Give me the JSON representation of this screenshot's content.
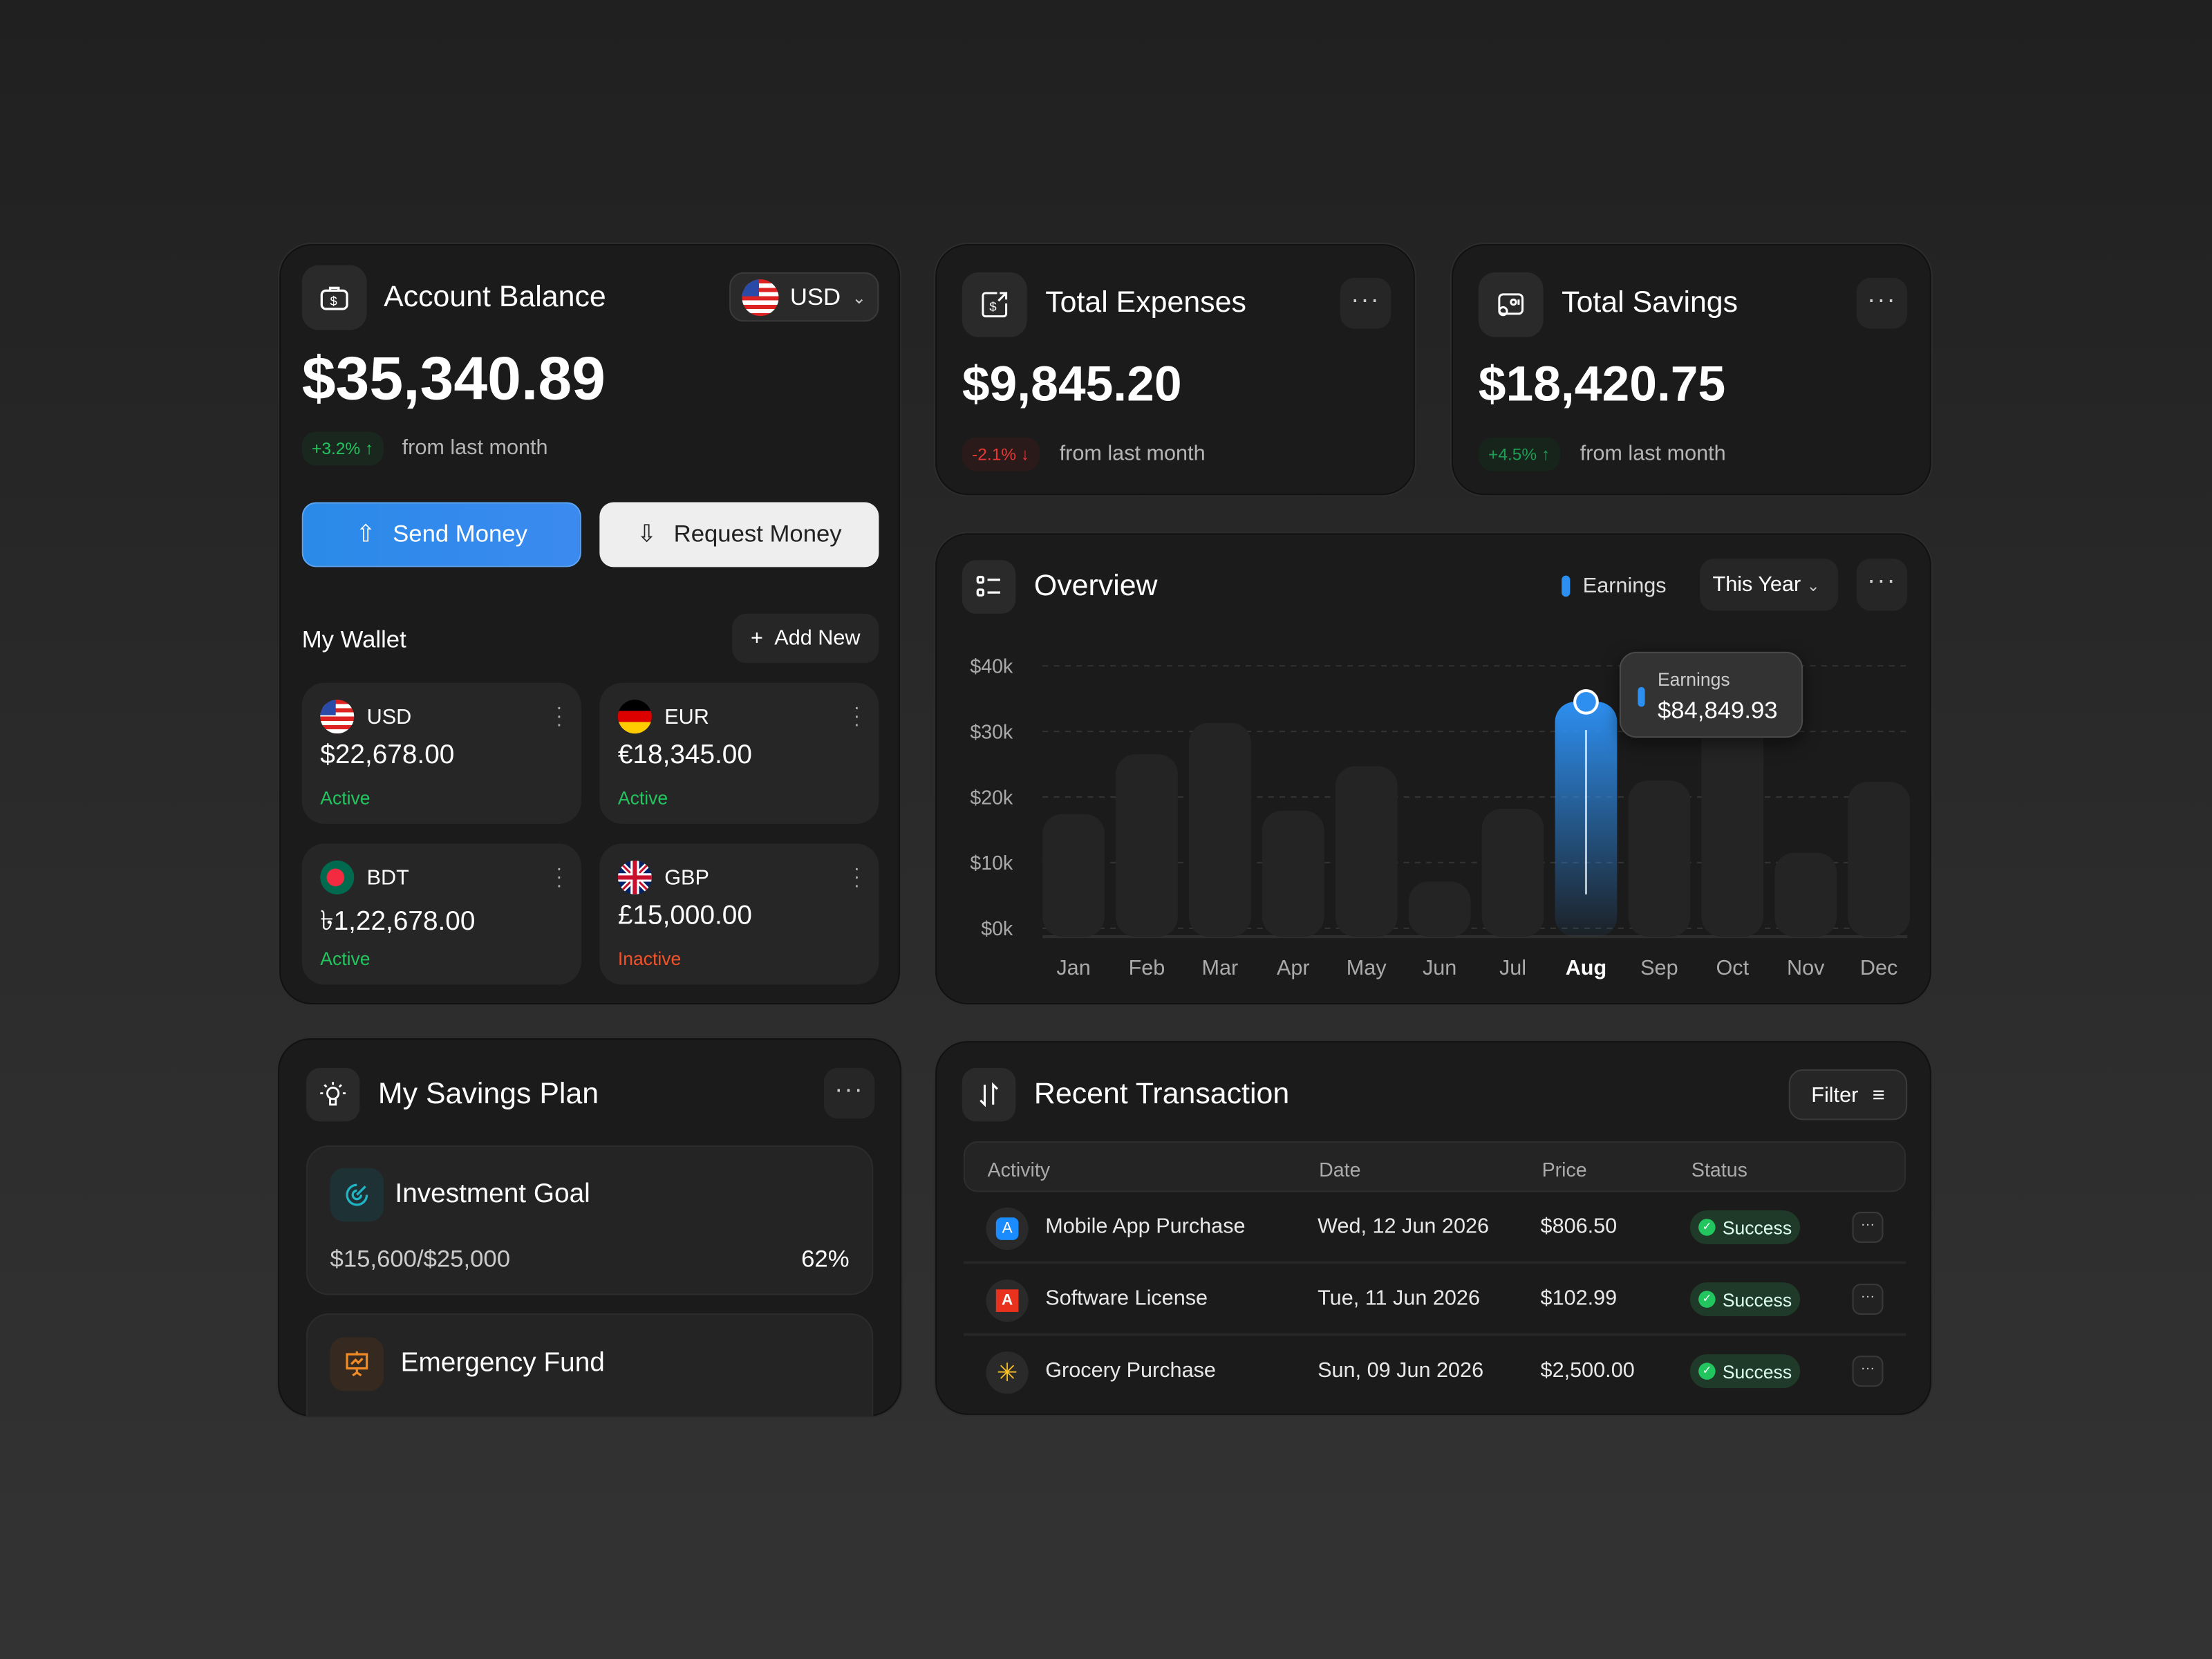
{
  "account": {
    "title": "Account Balance",
    "currency": "USD",
    "balance": "$35,340.89",
    "change": "+3.2% ↑",
    "change_note": "from last month",
    "send": "Send Money",
    "request": "Request Money",
    "wallet_title": "My Wallet",
    "add_new": "Add New",
    "wallets": [
      {
        "code": "USD",
        "amount": "$22,678.00",
        "status": "Active"
      },
      {
        "code": "EUR",
        "amount": "€18,345.00",
        "status": "Active"
      },
      {
        "code": "BDT",
        "amount": "৳1,22,678.00",
        "status": "Active"
      },
      {
        "code": "GBP",
        "amount": "£15,000.00",
        "status": "Inactive"
      }
    ]
  },
  "expenses": {
    "title": "Total Expenses",
    "amount": "$9,845.20",
    "change": "-2.1% ↓",
    "change_note": "from last month"
  },
  "savings": {
    "title": "Total Savings",
    "amount": "$18,420.75",
    "change": "+4.5% ↑",
    "change_note": "from last month"
  },
  "overview": {
    "title": "Overview",
    "legend": "Earnings",
    "period": "This Year",
    "tooltip_label": "Earnings",
    "tooltip_value": "$84,849.93"
  },
  "chart_data": {
    "type": "bar",
    "categories": [
      "Jan",
      "Feb",
      "Mar",
      "Apr",
      "May",
      "Jun",
      "Jul",
      "Aug",
      "Sep",
      "Oct",
      "Nov",
      "Dec"
    ],
    "series": [
      {
        "name": "Earnings",
        "values": [
          18.7,
          27.8,
          32.6,
          19.2,
          26,
          8.4,
          19.5,
          35.8,
          23.8,
          33,
          12.8,
          23.6
        ]
      }
    ],
    "y_ticks": [
      "$0k",
      "$10k",
      "$20k",
      "$30k",
      "$40k"
    ],
    "ylim": [
      0,
      40
    ],
    "highlight": "Aug",
    "grid": true,
    "legend": "top-right",
    "colors": {
      "bar": "#242424",
      "highlight": "#2d8ff0"
    }
  },
  "plan": {
    "title": "My Savings Plan",
    "goals": [
      {
        "name": "Investment Goal",
        "progress": "$15,600/$25,000",
        "percent": "62%"
      },
      {
        "name": "Emergency Fund"
      }
    ]
  },
  "transactions": {
    "title": "Recent Transaction",
    "filter": "Filter",
    "headers": [
      "Activity",
      "Date",
      "Price",
      "Status"
    ],
    "rows": [
      {
        "activity": "Mobile App Purchase",
        "date": "Wed, 12 Jun 2026",
        "price": "$806.50",
        "status": "Success"
      },
      {
        "activity": "Software License",
        "date": "Tue, 11 Jun 2026",
        "price": "$102.99",
        "status": "Success"
      },
      {
        "activity": "Grocery Purchase",
        "date": "Sun, 09 Jun 2026",
        "price": "$2,500.00",
        "status": "Success"
      }
    ]
  }
}
